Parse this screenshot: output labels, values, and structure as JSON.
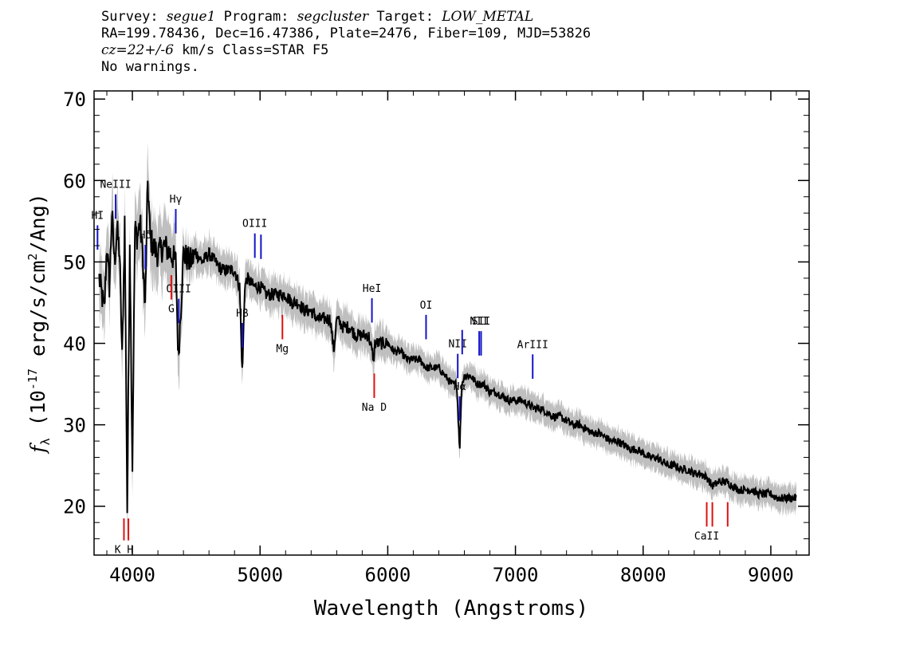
{
  "header": {
    "line1": {
      "survey_label": "Survey: ",
      "survey": "segue1",
      "program_label": " Program: ",
      "program": "segcluster",
      "target_label": " Target: ",
      "target": "LOW_METAL"
    },
    "line2": "RA=199.78436, Dec=16.47386, Plate=2476, Fiber=109, MJD=53826",
    "line3": {
      "cz": "cz=22+/-6",
      "rest": " km/s Class=STAR F5"
    },
    "line4": "No warnings."
  },
  "chart_data": {
    "type": "line",
    "xlabel": "Wavelength (Angstroms)",
    "ylabel": "f_λ (10^-17 erg/s/cm^2/Ang)",
    "xlim": [
      3700,
      9300
    ],
    "ylim": [
      14,
      71
    ],
    "xticks": [
      4000,
      5000,
      6000,
      7000,
      8000,
      9000
    ],
    "yticks": [
      20,
      30,
      40,
      50,
      60,
      70
    ],
    "series": [
      {
        "color": "#000000",
        "x": [
          3740,
          3780,
          3800,
          3820,
          3840,
          3860,
          3880,
          3900,
          3920,
          3940,
          3960,
          3980,
          4000,
          4020,
          4040,
          4060,
          4080,
          4100,
          4120,
          4140,
          4160,
          4200,
          4250,
          4300,
          4340,
          4360,
          4400,
          4450,
          4500,
          4550,
          4600,
          4650,
          4700,
          4750,
          4800,
          4840,
          4861,
          4880,
          4900,
          4950,
          5000,
          5050,
          5100,
          5150,
          5200,
          5250,
          5300,
          5350,
          5400,
          5450,
          5500,
          5550,
          5577,
          5600,
          5650,
          5700,
          5750,
          5800,
          5850,
          5890,
          5900,
          5950,
          6000,
          6050,
          6100,
          6150,
          6200,
          6250,
          6300,
          6350,
          6400,
          6450,
          6500,
          6540,
          6563,
          6580,
          6600,
          6650,
          6700,
          6750,
          6800,
          6850,
          6900,
          6950,
          7000,
          7050,
          7100,
          7150,
          7200,
          7250,
          7300,
          7350,
          7400,
          7450,
          7500,
          7550,
          7600,
          7650,
          7700,
          7750,
          7800,
          7850,
          7900,
          7950,
          8000,
          8050,
          8100,
          8150,
          8200,
          8250,
          8300,
          8350,
          8400,
          8450,
          8500,
          8542,
          8600,
          8650,
          8700,
          8750,
          8800,
          8850,
          8900,
          8950,
          9000,
          9050,
          9100,
          9150,
          9200
        ],
        "y": [
          48,
          44,
          52,
          47,
          56,
          50,
          54,
          51,
          38,
          55,
          19.5,
          53,
          25,
          54,
          53,
          55,
          51,
          44,
          60,
          53,
          52,
          51,
          52,
          51,
          50,
          38,
          51,
          50,
          51,
          50,
          51,
          50,
          49,
          49,
          49,
          47,
          36,
          47,
          48,
          47,
          47,
          46,
          46,
          46,
          46,
          45,
          45,
          44,
          44,
          43,
          43,
          43,
          39,
          43,
          42,
          42,
          41,
          41,
          41,
          38,
          40,
          40,
          40,
          39,
          39,
          38,
          38,
          38,
          37,
          37,
          37,
          36,
          35,
          35,
          27,
          35,
          36,
          36,
          35,
          35,
          34,
          34,
          33.5,
          33,
          33,
          33,
          32.5,
          32,
          32,
          31.5,
          31,
          31,
          30.5,
          30,
          30,
          29.5,
          29,
          29,
          28.5,
          28,
          28,
          27.5,
          27,
          27,
          26.5,
          26,
          26,
          25.5,
          25,
          25,
          24.5,
          24.5,
          24,
          24,
          23.5,
          22.5,
          23,
          23,
          22.5,
          22,
          22,
          22,
          21.5,
          21.5,
          21.5,
          21,
          21,
          21,
          21
        ]
      }
    ],
    "emission_lines": [
      {
        "label": "HI",
        "wave": 3727
      },
      {
        "label": "NeIII",
        "wave": 3869
      },
      {
        "label": "Hδ",
        "wave": 4102
      },
      {
        "label": "Hγ",
        "wave": 4340
      },
      {
        "label": "OIII",
        "wave": 4363
      },
      {
        "label": "Hβ",
        "wave": 4861
      },
      {
        "label": "OIII",
        "wave": 4959
      },
      {
        "label": "",
        "wave": 5007
      },
      {
        "label": "HeI",
        "wave": 5876
      },
      {
        "label": "OI",
        "wave": 6300
      },
      {
        "label": "NII",
        "wave": 6548
      },
      {
        "label": "Hα",
        "wave": 6563
      },
      {
        "label": "",
        "wave": 6583
      },
      {
        "label": "NII",
        "wave": 6716
      },
      {
        "label": "SII",
        "wave": 6731
      },
      {
        "label": "ArIII",
        "wave": 7135
      }
    ],
    "absorption_lines": [
      {
        "label": "K H",
        "wave": 3934
      },
      {
        "label": "",
        "wave": 3969
      },
      {
        "label": "G",
        "wave": 4305
      },
      {
        "label": "Mg",
        "wave": 5175
      },
      {
        "label": "Na D",
        "wave": 5894
      },
      {
        "label": "CaII",
        "wave": 8498
      },
      {
        "label": "",
        "wave": 8542
      },
      {
        "label": "",
        "wave": 8662
      }
    ],
    "colors": {
      "data": "#000000",
      "error": "#bfbfbf",
      "emission": "#1414c8",
      "absorption": "#e01010"
    }
  }
}
